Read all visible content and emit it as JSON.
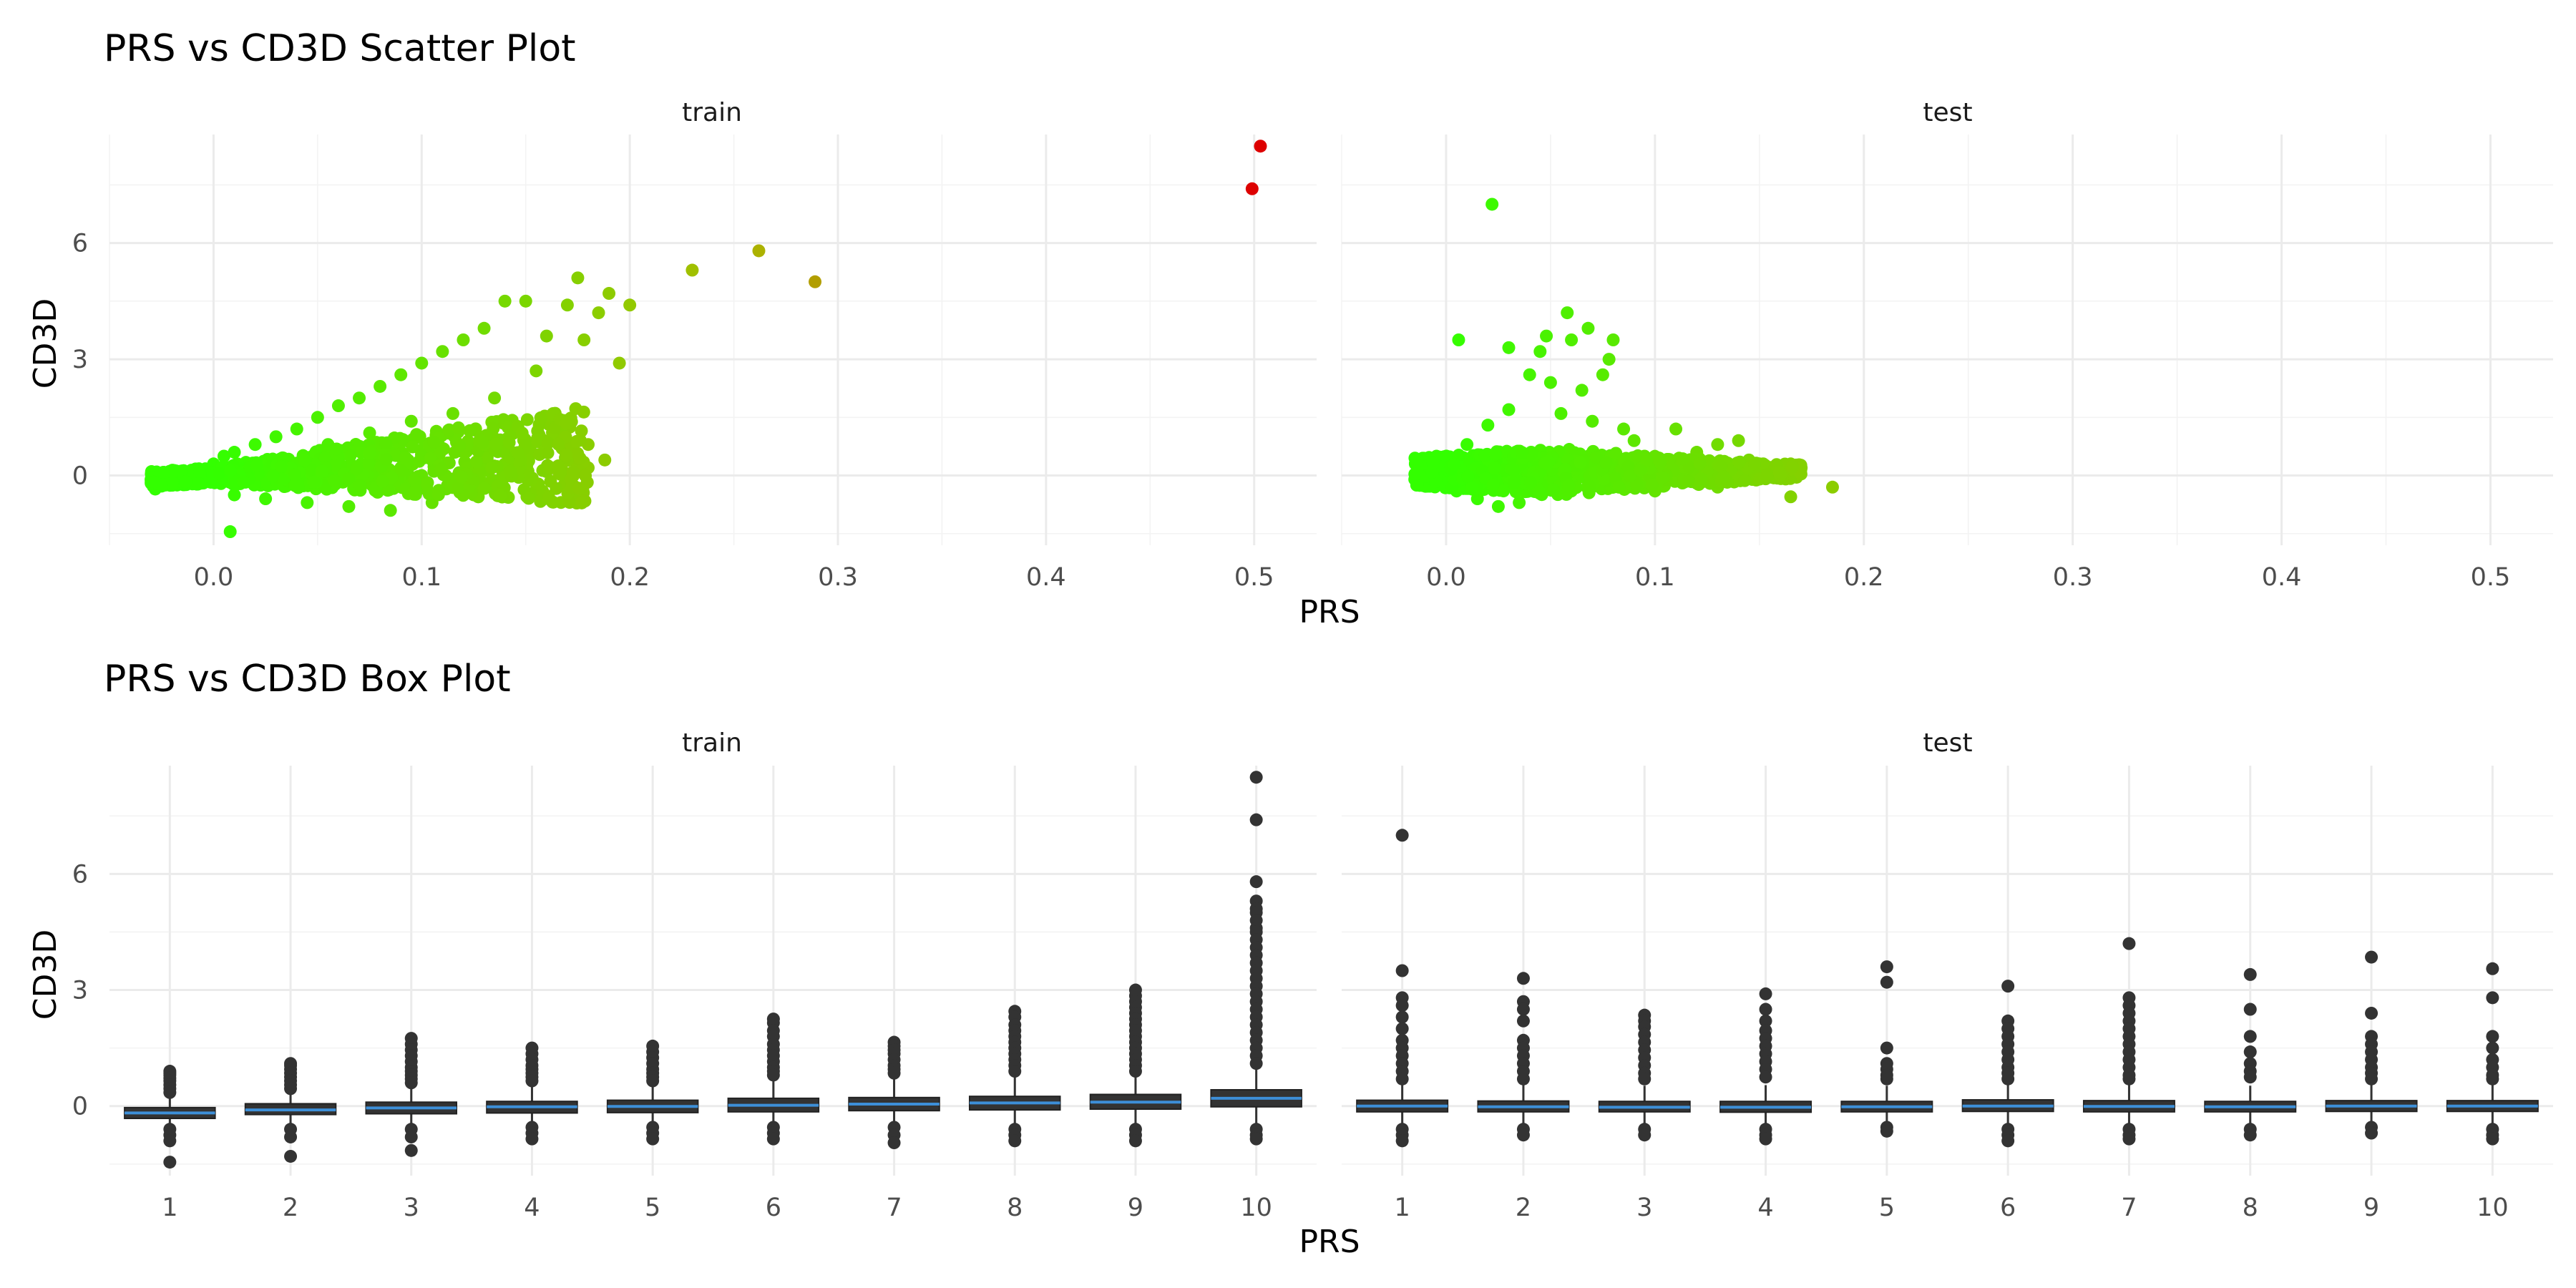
{
  "chart_data": [
    {
      "type": "scatter",
      "title": "PRS vs CD3D Scatter Plot",
      "xlabel": "PRS",
      "ylabel": "CD3D",
      "facets": [
        "train",
        "test"
      ],
      "xlim": [
        -0.05,
        0.53
      ],
      "ylim": [
        -1.8,
        8.8
      ],
      "x_ticks": [
        0.0,
        0.1,
        0.2,
        0.3,
        0.4,
        0.5
      ],
      "x_tick_labels": [
        "0.0",
        "0.1",
        "0.2",
        "0.3",
        "0.4",
        "0.5"
      ],
      "y_ticks": [
        0,
        3,
        6
      ],
      "y_tick_labels": [
        "0",
        "3",
        "6"
      ],
      "grid": true,
      "legend": "none",
      "color_scale": {
        "low": "#33ff00",
        "mid": "#aabb00",
        "high": "#dd0000",
        "range": [
          0.0,
          0.5
        ]
      },
      "panels": [
        {
          "facet": "train",
          "points": [
            [
              -0.03,
              -0.2
            ],
            [
              -0.028,
              -0.35
            ],
            [
              -0.02,
              -0.2
            ],
            [
              -0.015,
              -0.1
            ],
            [
              -0.01,
              0.1
            ],
            [
              0.0,
              0.3
            ],
            [
              0.005,
              0.5
            ],
            [
              0.01,
              -0.5
            ],
            [
              0.01,
              0.6
            ],
            [
              0.02,
              0.8
            ],
            [
              0.025,
              -0.6
            ],
            [
              0.03,
              1.0
            ],
            [
              0.035,
              0.4
            ],
            [
              0.04,
              1.2
            ],
            [
              0.045,
              -0.7
            ],
            [
              0.05,
              1.5
            ],
            [
              0.055,
              0.8
            ],
            [
              0.06,
              1.8
            ],
            [
              0.065,
              -0.8
            ],
            [
              0.07,
              2.0
            ],
            [
              0.075,
              1.1
            ],
            [
              0.08,
              2.3
            ],
            [
              0.085,
              -0.9
            ],
            [
              0.09,
              2.6
            ],
            [
              0.095,
              1.4
            ],
            [
              0.1,
              2.9
            ],
            [
              0.105,
              -0.7
            ],
            [
              0.11,
              3.2
            ],
            [
              0.115,
              1.6
            ],
            [
              0.12,
              3.5
            ],
            [
              0.125,
              -0.5
            ],
            [
              0.13,
              3.8
            ],
            [
              0.135,
              2.0
            ],
            [
              0.14,
              4.5
            ],
            [
              0.145,
              0.3
            ],
            [
              0.15,
              4.5
            ],
            [
              0.155,
              2.7
            ],
            [
              0.16,
              3.6
            ],
            [
              0.165,
              1.0
            ],
            [
              0.17,
              4.4
            ],
            [
              0.175,
              5.1
            ],
            [
              0.178,
              3.5
            ],
            [
              0.18,
              0.8
            ],
            [
              0.185,
              4.2
            ],
            [
              0.19,
              4.7
            ],
            [
              0.195,
              2.9
            ],
            [
              0.2,
              4.4
            ],
            [
              0.23,
              5.3
            ],
            [
              0.262,
              5.8
            ],
            [
              0.289,
              5.0
            ],
            [
              0.008,
              -1.45
            ],
            [
              0.03,
              0.2
            ],
            [
              0.05,
              0.0
            ],
            [
              0.06,
              0.4
            ],
            [
              0.07,
              -0.3
            ],
            [
              0.08,
              0.6
            ],
            [
              0.09,
              0.2
            ],
            [
              0.1,
              0.0
            ],
            [
              0.11,
              0.7
            ],
            [
              0.12,
              0.1
            ],
            [
              0.13,
              -0.2
            ],
            [
              0.14,
              0.3
            ],
            [
              0.15,
              0.6
            ],
            [
              0.16,
              0.1
            ],
            [
              0.17,
              -0.1
            ],
            [
              0.18,
              0.2
            ],
            [
              0.188,
              0.4
            ],
            [
              0.499,
              7.4
            ],
            [
              0.503,
              8.5
            ]
          ]
        },
        {
          "facet": "test",
          "points": [
            [
              -0.015,
              -0.1
            ],
            [
              -0.01,
              0.2
            ],
            [
              0.0,
              0.4
            ],
            [
              0.005,
              -0.4
            ],
            [
              0.006,
              3.5
            ],
            [
              0.01,
              0.8
            ],
            [
              0.015,
              -0.6
            ],
            [
              0.02,
              1.3
            ],
            [
              0.022,
              7.0
            ],
            [
              0.025,
              -0.8
            ],
            [
              0.03,
              3.3
            ],
            [
              0.03,
              1.7
            ],
            [
              0.035,
              -0.7
            ],
            [
              0.04,
              2.6
            ],
            [
              0.045,
              3.2
            ],
            [
              0.048,
              3.6
            ],
            [
              0.05,
              2.4
            ],
            [
              0.055,
              1.6
            ],
            [
              0.058,
              4.2
            ],
            [
              0.06,
              3.5
            ],
            [
              0.065,
              2.2
            ],
            [
              0.068,
              3.8
            ],
            [
              0.07,
              1.4
            ],
            [
              0.075,
              2.6
            ],
            [
              0.078,
              3.0
            ],
            [
              0.08,
              3.5
            ],
            [
              0.085,
              1.2
            ],
            [
              0.09,
              0.9
            ],
            [
              0.095,
              0.5
            ],
            [
              0.1,
              0.4
            ],
            [
              0.105,
              0.3
            ],
            [
              0.11,
              1.2
            ],
            [
              0.115,
              0.2
            ],
            [
              0.12,
              0.6
            ],
            [
              0.125,
              0.1
            ],
            [
              0.13,
              0.8
            ],
            [
              0.135,
              0.2
            ],
            [
              0.14,
              0.9
            ],
            [
              0.145,
              0.4
            ],
            [
              0.15,
              0.3
            ],
            [
              0.155,
              0.1
            ],
            [
              0.16,
              0.0
            ],
            [
              0.165,
              0.3
            ],
            [
              0.17,
              0.2
            ],
            [
              0.165,
              -0.55
            ],
            [
              0.185,
              -0.3
            ],
            [
              0.03,
              0.0
            ],
            [
              0.04,
              -0.2
            ],
            [
              0.05,
              0.3
            ],
            [
              0.06,
              -0.4
            ],
            [
              0.07,
              0.1
            ],
            [
              0.08,
              -0.3
            ],
            [
              0.09,
              -0.1
            ],
            [
              0.1,
              -0.4
            ],
            [
              0.12,
              -0.2
            ],
            [
              0.13,
              -0.3
            ]
          ]
        }
      ]
    },
    {
      "type": "box",
      "title": "PRS vs CD3D Box Plot",
      "xlabel": "PRS",
      "ylabel": "CD3D",
      "facets": [
        "train",
        "test"
      ],
      "categories": [
        "1",
        "2",
        "3",
        "4",
        "5",
        "6",
        "7",
        "8",
        "9",
        "10"
      ],
      "ylim": [
        -1.8,
        8.8
      ],
      "y_ticks": [
        0,
        3,
        6
      ],
      "y_tick_labels": [
        "0",
        "3",
        "6"
      ],
      "grid": true,
      "legend": "none",
      "box_fill": "#333333",
      "median_color": "#3d8fd8",
      "outlier_color": "#333333",
      "panels": [
        {
          "facet": "train",
          "boxes": [
            {
              "q1": -0.32,
              "median": -0.18,
              "q3": -0.04,
              "outliers": [
                0.9,
                0.85,
                0.8,
                0.72,
                0.65,
                0.55,
                0.45,
                0.35,
                -0.6,
                -0.75,
                -0.9,
                -1.45
              ]
            },
            {
              "q1": -0.22,
              "median": -0.1,
              "q3": 0.06,
              "outliers": [
                1.1,
                1.05,
                0.95,
                0.85,
                0.75,
                0.65,
                0.55,
                0.45,
                -0.6,
                -0.8,
                -1.3
              ]
            },
            {
              "q1": -0.2,
              "median": -0.05,
              "q3": 0.1,
              "outliers": [
                1.75,
                1.6,
                1.45,
                1.3,
                1.15,
                1.0,
                0.9,
                0.8,
                0.7,
                0.6,
                -0.6,
                -0.8,
                -1.15
              ]
            },
            {
              "q1": -0.18,
              "median": -0.02,
              "q3": 0.12,
              "outliers": [
                1.5,
                1.35,
                1.2,
                1.05,
                0.95,
                0.85,
                0.75,
                0.65,
                -0.55,
                -0.7,
                -0.85
              ]
            },
            {
              "q1": -0.17,
              "median": -0.01,
              "q3": 0.15,
              "outliers": [
                1.55,
                1.4,
                1.25,
                1.1,
                0.95,
                0.85,
                0.75,
                0.65,
                -0.55,
                -0.7,
                -0.85
              ]
            },
            {
              "q1": -0.15,
              "median": 0.02,
              "q3": 0.2,
              "outliers": [
                2.25,
                2.15,
                1.95,
                1.8,
                1.6,
                1.45,
                1.3,
                1.15,
                1.0,
                0.9,
                0.8,
                -0.55,
                -0.7,
                -0.85
              ]
            },
            {
              "q1": -0.12,
              "median": 0.05,
              "q3": 0.22,
              "outliers": [
                1.65,
                1.55,
                1.45,
                1.35,
                1.2,
                1.05,
                0.95,
                0.85,
                -0.55,
                -0.75,
                -0.95
              ]
            },
            {
              "q1": -0.1,
              "median": 0.08,
              "q3": 0.25,
              "outliers": [
                2.45,
                2.3,
                2.1,
                1.95,
                1.8,
                1.65,
                1.5,
                1.35,
                1.2,
                1.05,
                0.9,
                -0.6,
                -0.75,
                -0.9
              ]
            },
            {
              "q1": -0.08,
              "median": 0.1,
              "q3": 0.3,
              "outliers": [
                3.0,
                2.85,
                2.7,
                2.55,
                2.4,
                2.25,
                2.1,
                1.95,
                1.8,
                1.65,
                1.5,
                1.35,
                1.2,
                1.05,
                0.9,
                -0.6,
                -0.75,
                -0.9
              ]
            },
            {
              "q1": -0.02,
              "median": 0.2,
              "q3": 0.42,
              "outliers": [
                8.5,
                7.4,
                5.8,
                5.3,
                5.1,
                5.0,
                4.8,
                4.6,
                4.5,
                4.3,
                4.1,
                3.9,
                3.7,
                3.5,
                3.3,
                3.1,
                2.9,
                2.7,
                2.5,
                2.3,
                2.1,
                1.9,
                1.7,
                1.5,
                1.3,
                1.1,
                -0.6,
                -0.75,
                -0.85
              ]
            }
          ]
        },
        {
          "facet": "test",
          "boxes": [
            {
              "q1": -0.15,
              "median": 0.0,
              "q3": 0.15,
              "outliers": [
                7.0,
                3.5,
                2.8,
                2.6,
                2.3,
                2.0,
                1.7,
                1.5,
                1.3,
                1.1,
                0.9,
                0.7,
                -0.6,
                -0.75,
                -0.9
              ]
            },
            {
              "q1": -0.15,
              "median": -0.02,
              "q3": 0.13,
              "outliers": [
                3.3,
                2.7,
                2.5,
                2.2,
                1.7,
                1.5,
                1.3,
                1.1,
                0.9,
                0.7,
                -0.6,
                -0.75
              ]
            },
            {
              "q1": -0.15,
              "median": -0.03,
              "q3": 0.12,
              "outliers": [
                2.35,
                2.2,
                2.05,
                1.85,
                1.65,
                1.45,
                1.25,
                1.05,
                0.85,
                0.7,
                -0.6,
                -0.75
              ]
            },
            {
              "q1": -0.16,
              "median": -0.03,
              "q3": 0.12,
              "outliers": [
                2.9,
                2.5,
                2.2,
                1.95,
                1.75,
                1.55,
                1.35,
                1.15,
                0.95,
                0.75,
                -0.6,
                -0.75,
                -0.85
              ]
            },
            {
              "q1": -0.15,
              "median": -0.02,
              "q3": 0.12,
              "outliers": [
                3.6,
                3.2,
                1.5,
                1.1,
                0.95,
                0.8,
                0.7,
                -0.55,
                -0.65
              ]
            },
            {
              "q1": -0.14,
              "median": 0.0,
              "q3": 0.16,
              "outliers": [
                3.1,
                2.2,
                2.0,
                1.8,
                1.6,
                1.4,
                1.2,
                1.0,
                0.85,
                0.7,
                -0.6,
                -0.75,
                -0.9
              ]
            },
            {
              "q1": -0.15,
              "median": -0.01,
              "q3": 0.14,
              "outliers": [
                4.2,
                2.8,
                2.6,
                2.4,
                2.2,
                2.0,
                1.8,
                1.6,
                1.4,
                1.2,
                1.0,
                0.8,
                0.7,
                -0.6,
                -0.75,
                -0.85
              ]
            },
            {
              "q1": -0.15,
              "median": -0.02,
              "q3": 0.12,
              "outliers": [
                3.4,
                2.5,
                1.8,
                1.4,
                1.1,
                0.9,
                0.75,
                -0.6,
                -0.75
              ]
            },
            {
              "q1": -0.14,
              "median": 0.0,
              "q3": 0.14,
              "outliers": [
                3.85,
                2.4,
                1.8,
                1.6,
                1.4,
                1.2,
                1.0,
                0.85,
                0.7,
                -0.55,
                -0.7
              ]
            },
            {
              "q1": -0.14,
              "median": 0.0,
              "q3": 0.14,
              "outliers": [
                3.55,
                2.8,
                1.8,
                1.5,
                1.2,
                1.0,
                0.8,
                0.7,
                -0.6,
                -0.75,
                -0.85
              ]
            }
          ]
        }
      ]
    }
  ]
}
